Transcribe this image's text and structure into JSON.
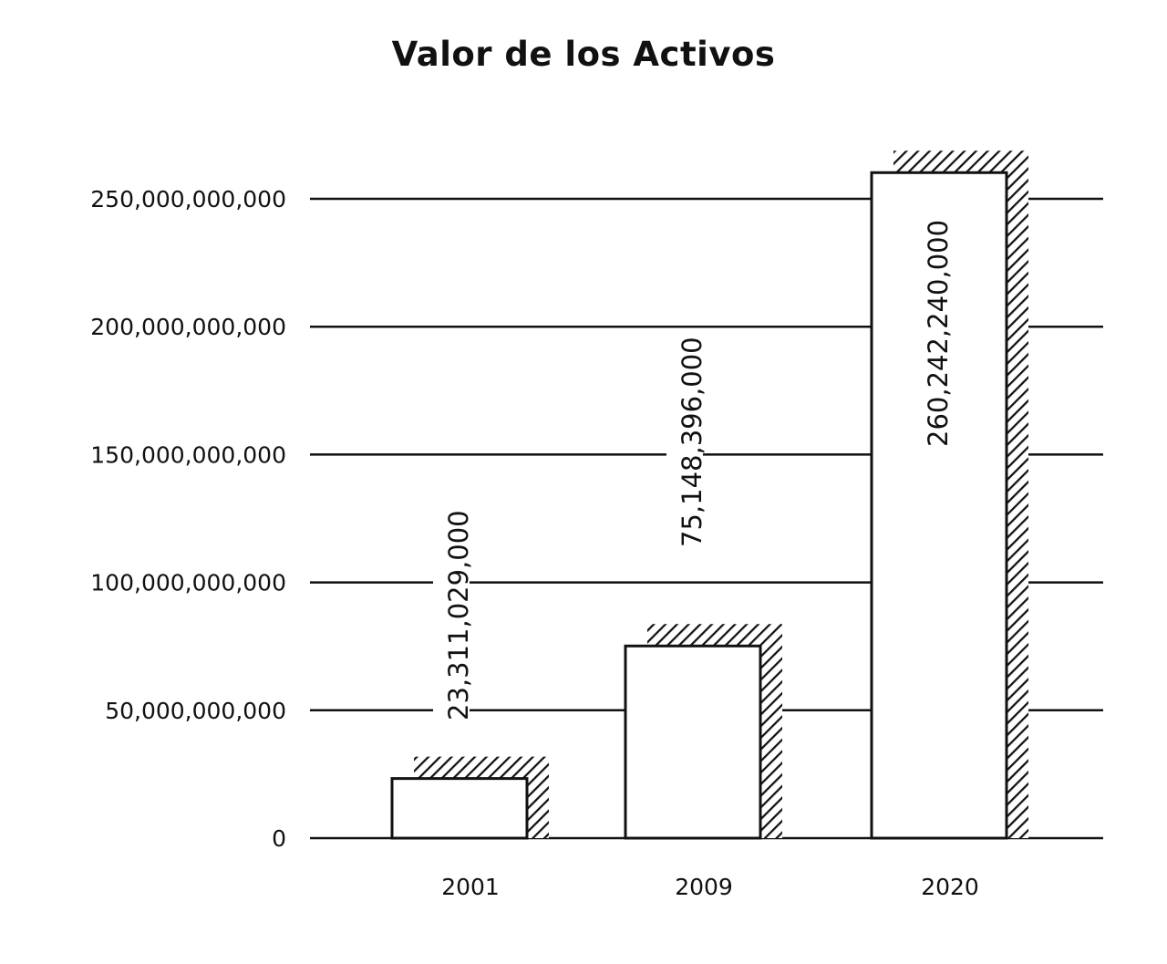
{
  "chart_data": {
    "type": "bar",
    "title": "Valor de los Activos",
    "xlabel": "",
    "ylabel": "",
    "categories": [
      "2001",
      "2009",
      "2020"
    ],
    "values": [
      23311029000,
      75148396000,
      260242240000
    ],
    "value_labels": [
      "23,311,029,000",
      "75,148,396,000",
      "260,242,240,000"
    ],
    "y_ticks": [
      0,
      50000000000,
      100000000000,
      150000000000,
      200000000000,
      250000000000
    ],
    "y_tick_labels": [
      "0",
      "50,000,000,000",
      "100,000,000,000",
      "150,000,000,000",
      "200,000,000,000",
      "250,000,000,000"
    ],
    "ylim": [
      0,
      250000000000
    ],
    "grid": true,
    "legend": "none",
    "colors": {
      "bar_fill": "#ffffff",
      "bar_stroke": "#111111",
      "hatch": "#111111",
      "grid": "#111111",
      "text": "#111111"
    }
  }
}
